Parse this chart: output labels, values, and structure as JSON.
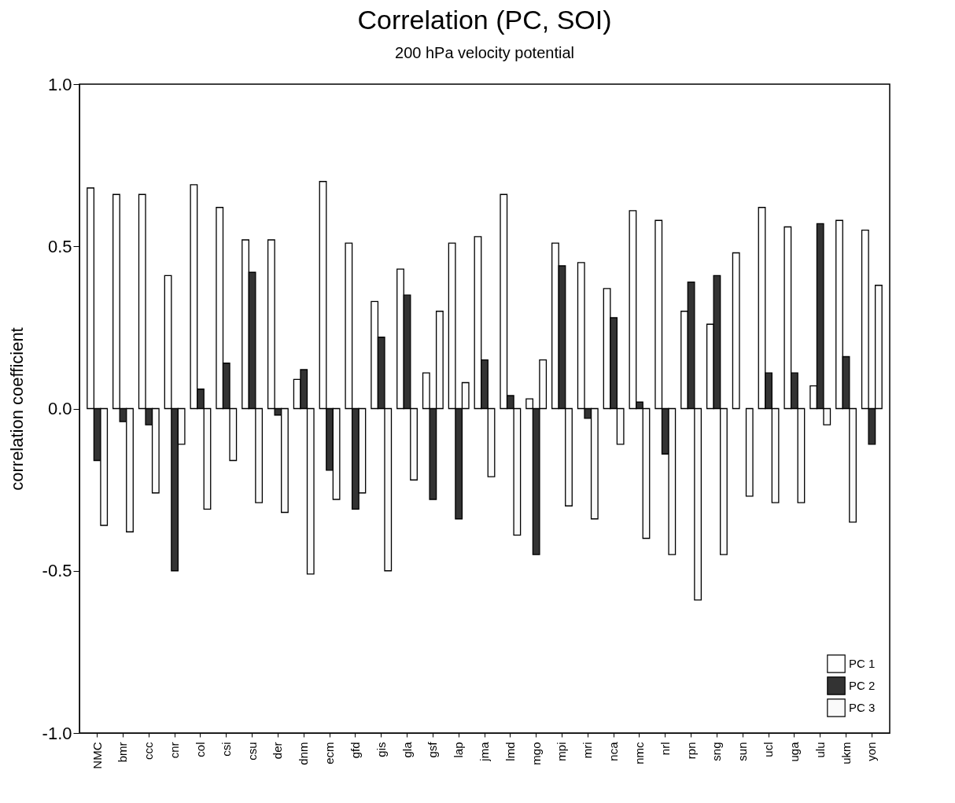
{
  "chart_data": {
    "type": "bar",
    "title": "Correlation (PC, SOI)",
    "subtitle": "200 hPa velocity potential",
    "ylabel": "correlation coefficient",
    "categories": [
      "NMC",
      "bmr",
      "ccc",
      "cnr",
      "col",
      "csi",
      "csu",
      "der",
      "dnm",
      "ecm",
      "gfd",
      "gis",
      "gla",
      "gsf",
      "lap",
      "jma",
      "lmd",
      "mgo",
      "mpi",
      "mri",
      "nca",
      "nmc",
      "nrl",
      "rpn",
      "sng",
      "sun",
      "ucl",
      "uga",
      "ulu",
      "ukm",
      "yon"
    ],
    "series": [
      {
        "name": "PC 1",
        "color": "#ffffff",
        "values": [
          0.68,
          0.66,
          0.66,
          0.41,
          0.69,
          0.62,
          0.52,
          0.52,
          0.09,
          0.7,
          0.51,
          0.33,
          0.43,
          0.11,
          0.51,
          0.53,
          0.66,
          0.03,
          0.51,
          0.45,
          0.37,
          0.61,
          0.58,
          0.3,
          0.26,
          0.48,
          0.62,
          0.56,
          0.07,
          0.58,
          0.55
        ]
      },
      {
        "name": "PC 2",
        "color": "#333333",
        "values": [
          -0.16,
          -0.04,
          -0.05,
          -0.5,
          0.06,
          0.14,
          0.42,
          -0.02,
          0.12,
          -0.19,
          -0.31,
          0.22,
          0.35,
          -0.28,
          -0.34,
          0.15,
          0.04,
          -0.45,
          0.44,
          -0.03,
          0.28,
          0.02,
          -0.14,
          0.39,
          0.41,
          null,
          0.11,
          0.11,
          0.57,
          0.16,
          -0.11
        ]
      },
      {
        "name": "PC 3",
        "color": "#fafafa",
        "values": [
          -0.36,
          -0.38,
          -0.26,
          -0.11,
          -0.31,
          -0.16,
          -0.29,
          -0.32,
          -0.51,
          -0.28,
          -0.26,
          -0.5,
          -0.22,
          0.3,
          0.08,
          -0.21,
          -0.39,
          0.15,
          -0.3,
          -0.34,
          -0.11,
          -0.4,
          -0.45,
          -0.59,
          -0.45,
          -0.27,
          -0.29,
          -0.29,
          -0.05,
          -0.35,
          0.38
        ]
      }
    ],
    "ylim": [
      -1,
      1
    ],
    "yticks": [
      {
        "value": -1,
        "label": "-1.0"
      },
      {
        "value": -0.5,
        "label": "-0.5"
      },
      {
        "value": 0,
        "label": "0.0"
      },
      {
        "value": 0.5,
        "label": "0.5"
      },
      {
        "value": 1,
        "label": "1.0"
      }
    ],
    "grid": false,
    "legend": "bottom right"
  }
}
